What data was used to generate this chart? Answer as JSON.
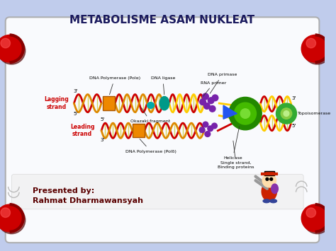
{
  "title": "METABOLISME ASAM NUKLEAT",
  "title_fontsize": 11,
  "title_color": "#1a1a5e",
  "bg_color": "#c0ccec",
  "inner_box_color": "#ffffff",
  "corner_circle_color": "#cc0000",
  "presenter_line1": "Presented by:",
  "presenter_line2": "Rahmat Dharmawansyah",
  "presenter_fontsize": 8,
  "presenter_color": "#5a0000",
  "lagging_label": "Lagging\nstrand",
  "leading_label": "Leading\nstrand",
  "label_fontsize": 4.5,
  "strand_label_fontsize": 5.5,
  "label_color": "#000000",
  "red_color": "#cc0000",
  "orange_color": "#ee8800",
  "yellow_color": "#ddcc00",
  "green_dark": "#227700",
  "green_light": "#55aa00",
  "teal_color": "#008899",
  "purple_color": "#6633aa",
  "blue_color": "#2244dd",
  "labels": {
    "dna_primase": "DNA primase",
    "rna_primer": "RNA primer",
    "dna_ligase": "DNA ligase",
    "dna_poly_top": "DNA Polymerase (Polα)",
    "okazaki": "Okazaki fragment",
    "dna_poly_bottom": "DNA Polymerase (Polδ)",
    "helicase": "Helicase",
    "single_strand": "Single strand,\nBinding proteins",
    "topoisomerase": "Topoisomerase"
  }
}
